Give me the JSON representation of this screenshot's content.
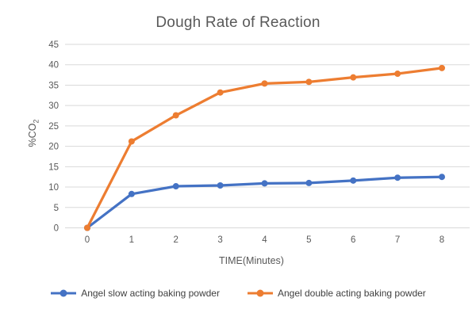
{
  "chart": {
    "title": "Dough Rate of Reaction",
    "xlabel": "TIME(Minutes)",
    "ylabel_main": "%CO",
    "ylabel_sub": "2"
  },
  "colors": {
    "grid": "#D9D9D9",
    "axis_text": "#595959",
    "legend_text": "#404040"
  },
  "chart_data": {
    "type": "line",
    "title": "Dough Rate of Reaction",
    "xlabel": "TIME(Minutes)",
    "ylabel": "%CO2",
    "categories": [
      "0",
      "1",
      "2",
      "3",
      "4",
      "5",
      "6",
      "7",
      "8"
    ],
    "yticks": [
      0,
      5,
      10,
      15,
      20,
      25,
      30,
      35,
      40,
      45
    ],
    "ylim": [
      0,
      45
    ],
    "grid": "horizontal",
    "legend_position": "bottom",
    "marker": "circle",
    "series": [
      {
        "name": "Angel slow acting baking powder",
        "color": "#4472C4",
        "values": [
          0,
          8.3,
          10.2,
          10.4,
          10.9,
          11.0,
          11.6,
          12.3,
          12.5
        ]
      },
      {
        "name": "Angel double acting baking powder",
        "color": "#ED7D31",
        "values": [
          0,
          21.2,
          27.6,
          33.2,
          35.4,
          35.8,
          36.9,
          37.8,
          39.2
        ]
      }
    ]
  }
}
